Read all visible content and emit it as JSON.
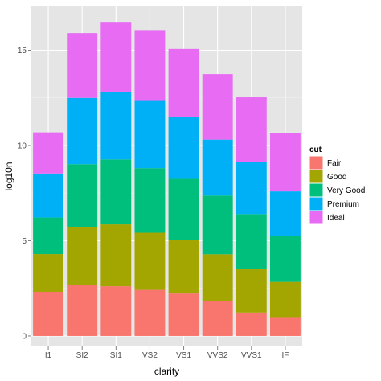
{
  "chart_data": {
    "type": "bar",
    "stacked": true,
    "xlabel": "clarity",
    "ylabel": "log10n",
    "ylim": [
      -0.55,
      17.3
    ],
    "yticks": [
      0,
      5,
      10,
      15
    ],
    "categories": [
      "I1",
      "SI2",
      "SI1",
      "VS2",
      "VS1",
      "VVS2",
      "VVS1",
      "IF"
    ],
    "legend_title": "cut",
    "legend_position": "right",
    "grid": true,
    "series": [
      {
        "name": "Fair",
        "color": "#F8766D",
        "values": [
          2.32,
          2.67,
          2.61,
          2.42,
          2.23,
          1.84,
          1.23,
          0.95
        ]
      },
      {
        "name": "Good",
        "color": "#A3A500",
        "values": [
          1.98,
          3.03,
          3.25,
          3.0,
          2.81,
          2.45,
          2.27,
          1.89
        ]
      },
      {
        "name": "Very Good",
        "color": "#00BF7D",
        "values": [
          1.92,
          3.32,
          3.41,
          3.39,
          3.21,
          3.08,
          2.9,
          2.42
        ]
      },
      {
        "name": "Premium",
        "color": "#00B0F6",
        "values": [
          2.31,
          3.48,
          3.56,
          3.53,
          3.27,
          2.94,
          2.74,
          2.33
        ]
      },
      {
        "name": "Ideal",
        "color": "#E76BF3",
        "values": [
          2.16,
          3.4,
          3.66,
          3.72,
          3.55,
          3.44,
          3.39,
          3.08
        ]
      }
    ]
  }
}
